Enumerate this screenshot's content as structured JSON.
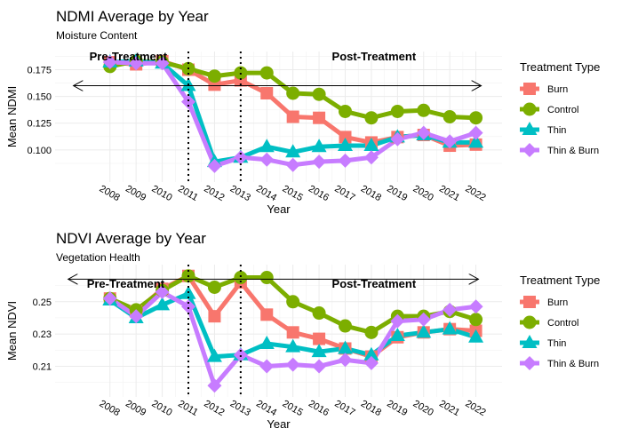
{
  "chart_data": [
    {
      "type": "line",
      "title": "NDMI Average by Year",
      "subtitle": "Moisture Content",
      "x_label": "Year",
      "y_label": "Mean NDMI",
      "legend_title": "Treatment Type",
      "legend_position": "right",
      "grid": true,
      "x": [
        2008,
        2009,
        2010,
        2011,
        2012,
        2013,
        2014,
        2015,
        2016,
        2017,
        2018,
        2019,
        2020,
        2021,
        2022
      ],
      "xlim": [
        2005.9,
        2023
      ],
      "ylim": [
        0.07,
        0.192
      ],
      "yticks": [
        {
          "value": 0.1,
          "label": "0.100"
        },
        0.125,
        {
          "value": 0.15,
          "label": "0.150"
        },
        0.175
      ],
      "vlines": [
        2011,
        2013
      ],
      "arrow": {
        "x": [
          2006.6,
          2022.2
        ],
        "y": 0.16
      },
      "annotations": [
        {
          "text": "Pre-Treatment",
          "x": 2008.7,
          "y": 0.187
        },
        {
          "text": "Post-Treatment",
          "x": 2018.1,
          "y": 0.187
        }
      ],
      "series": [
        {
          "name": "Burn",
          "color": "#F8766D",
          "marker": "square",
          "values": [
            0.182,
            0.18,
            0.183,
            0.175,
            0.161,
            0.165,
            0.153,
            0.131,
            0.13,
            0.112,
            0.107,
            0.112,
            0.114,
            0.104,
            0.105
          ]
        },
        {
          "name": "Control",
          "color": "#7CAE00",
          "marker": "circle",
          "values": [
            0.178,
            0.183,
            0.182,
            0.176,
            0.169,
            0.172,
            0.172,
            0.153,
            0.152,
            0.136,
            0.13,
            0.136,
            0.137,
            0.131,
            0.13
          ]
        },
        {
          "name": "Thin",
          "color": "#00BFC4",
          "marker": "triangle",
          "values": [
            0.182,
            0.183,
            0.181,
            0.16,
            0.089,
            0.093,
            0.103,
            0.098,
            0.103,
            0.104,
            0.104,
            0.112,
            0.114,
            0.107,
            0.107
          ]
        },
        {
          "name": "Thin & Burn",
          "color": "#C77CFF",
          "marker": "diamond",
          "values": [
            0.182,
            0.181,
            0.181,
            0.145,
            0.085,
            0.093,
            0.091,
            0.086,
            0.089,
            0.09,
            0.093,
            0.11,
            0.116,
            0.108,
            0.116
          ]
        }
      ]
    },
    {
      "type": "line",
      "title": "NDVI Average by Year",
      "subtitle": "Vegetation Health",
      "x_label": "Year",
      "y_label": "Mean NDVI",
      "legend_title": "Treatment Type",
      "legend_position": "right",
      "grid": true,
      "x": [
        2008,
        2009,
        2010,
        2011,
        2012,
        2013,
        2014,
        2015,
        2016,
        2017,
        2018,
        2019,
        2020,
        2021,
        2022
      ],
      "xlim": [
        2005.9,
        2023
      ],
      "ylim": [
        0.191,
        0.273
      ],
      "yticks": [
        0.21,
        0.23,
        0.25
      ],
      "vlines": [
        2011,
        2013
      ],
      "arrow": {
        "x": [
          2006.4,
          2022.1
        ],
        "y": 0.264
      },
      "annotations": [
        {
          "text": "Pre-Treatment",
          "x": 2008.6,
          "y": 0.261
        },
        {
          "text": "Post-Treatment",
          "x": 2018.1,
          "y": 0.261
        }
      ],
      "series": [
        {
          "name": "Burn",
          "color": "#F8766D",
          "marker": "square",
          "values": [
            0.252,
            0.244,
            0.258,
            0.266,
            0.241,
            0.262,
            0.242,
            0.231,
            0.227,
            0.221,
            0.216,
            0.228,
            0.231,
            0.233,
            0.232
          ]
        },
        {
          "name": "Control",
          "color": "#7CAE00",
          "marker": "circle",
          "values": [
            0.252,
            0.245,
            0.257,
            0.266,
            0.259,
            0.265,
            0.265,
            0.25,
            0.243,
            0.235,
            0.231,
            0.241,
            0.241,
            0.244,
            0.239
          ]
        },
        {
          "name": "Thin",
          "color": "#00BFC4",
          "marker": "triangle",
          "values": [
            0.251,
            0.24,
            0.248,
            0.255,
            0.216,
            0.217,
            0.224,
            0.222,
            0.219,
            0.221,
            0.217,
            0.229,
            0.231,
            0.233,
            0.228
          ]
        },
        {
          "name": "Thin & Burn",
          "color": "#C77CFF",
          "marker": "diamond",
          "values": [
            0.252,
            0.241,
            0.256,
            0.247,
            0.198,
            0.217,
            0.21,
            0.211,
            0.21,
            0.214,
            0.212,
            0.238,
            0.239,
            0.245,
            0.247
          ]
        }
      ]
    }
  ]
}
